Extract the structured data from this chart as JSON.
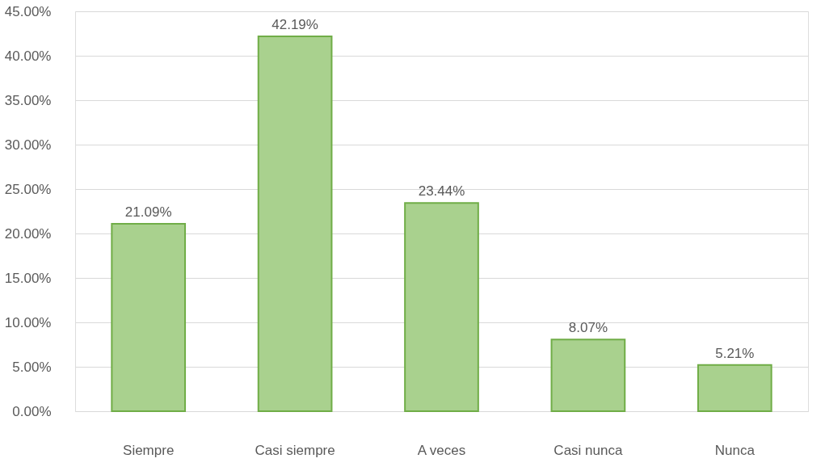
{
  "chart_data": {
    "type": "bar",
    "categories": [
      "Siempre",
      "Casi siempre",
      "A veces",
      "Casi nunca",
      "Nunca"
    ],
    "series": [
      {
        "color": "#a9d18e",
        "values": [
          21.09,
          42.19,
          23.44,
          8.07,
          5.21
        ]
      }
    ],
    "value_labels": [
      "21.09%",
      "42.19%",
      "23.44%",
      "8.07%",
      "5.21%"
    ],
    "ylim": [
      0,
      45
    ],
    "yticks": [
      {
        "value": 0,
        "label": "0.00%"
      },
      {
        "value": 5,
        "label": "5.00%"
      },
      {
        "value": 10,
        "label": "10.00%"
      },
      {
        "value": 15,
        "label": "15.00%"
      },
      {
        "value": 20,
        "label": "20.00%"
      },
      {
        "value": 25,
        "label": "25.00%"
      },
      {
        "value": 30,
        "label": "30.00%"
      },
      {
        "value": 35,
        "label": "35.00%"
      },
      {
        "value": 40,
        "label": "40.00%"
      },
      {
        "value": 45,
        "label": "45.00%"
      }
    ],
    "grid": "y"
  }
}
